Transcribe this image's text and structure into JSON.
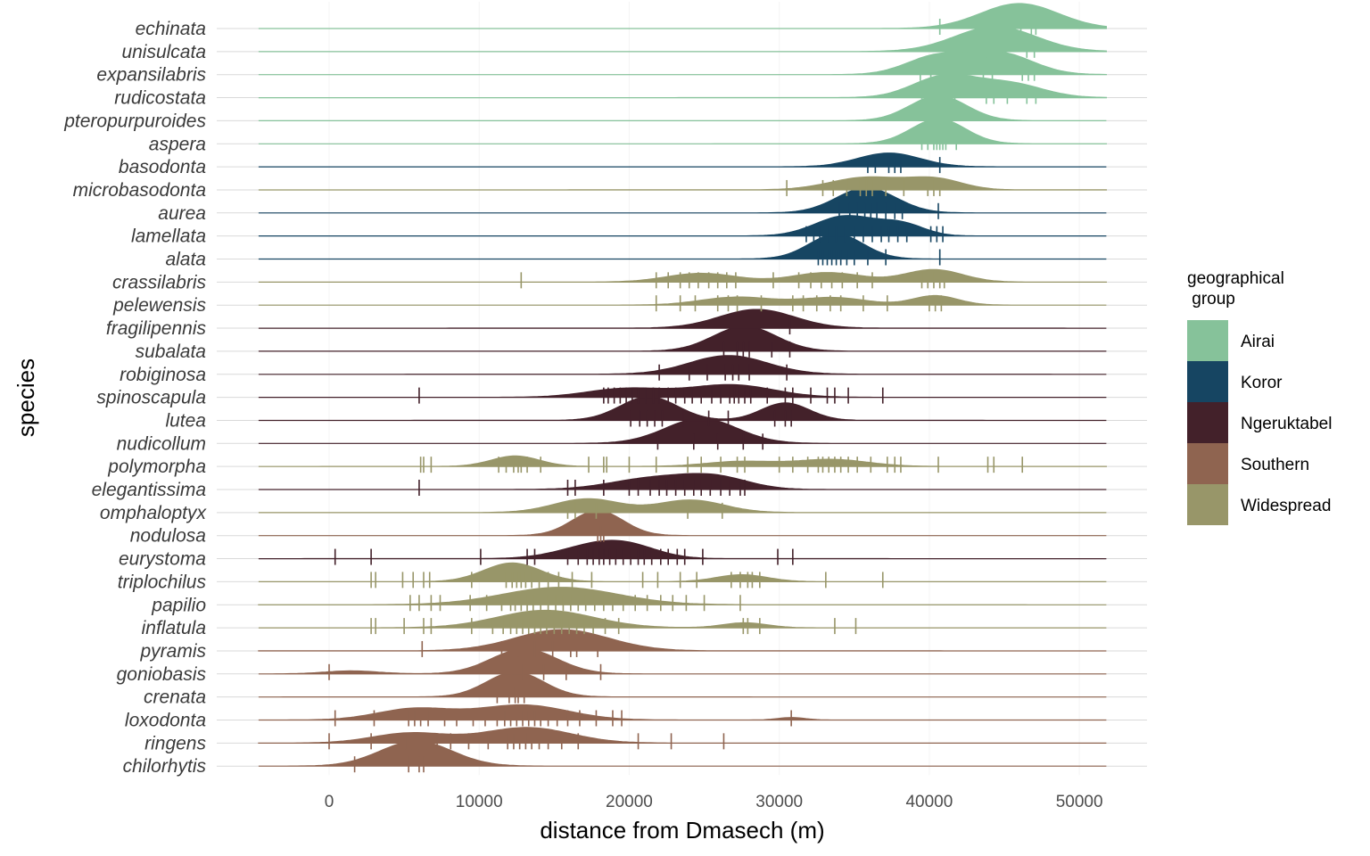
{
  "chart_data": {
    "type": "ridgeline",
    "xlabel": "distance from Dmasech (m)",
    "ylabel": "species",
    "xlim": [
      -4700,
      51800
    ],
    "xticks": [
      0,
      10000,
      20000,
      30000,
      40000,
      50000
    ],
    "xtick_labels": [
      "0",
      "10000",
      "20000",
      "30000",
      "40000",
      "50000"
    ],
    "legend": {
      "title": "geographical\n group",
      "position": "right",
      "groups": [
        {
          "name": "Airai",
          "color": "#86C29A"
        },
        {
          "name": "Koror",
          "color": "#164562"
        },
        {
          "name": "Ngeruktabel",
          "color": "#43212A"
        },
        {
          "name": "Southern",
          "color": "#8F6450"
        },
        {
          "name": "Widespread",
          "color": "#989669"
        }
      ]
    },
    "series": [
      {
        "name": "echinata",
        "group": "Airai",
        "peaks": [
          [
            46000,
            1.0,
            2600
          ]
        ],
        "points": [
          40700,
          43900,
          45300,
          46100,
          46800,
          47100
        ]
      },
      {
        "name": "unisulcata",
        "group": "Airai",
        "peaks": [
          [
            44400,
            1.0,
            2700
          ]
        ],
        "points": [
          41900,
          42300,
          42600,
          43800,
          44100,
          44800,
          46500,
          47000
        ]
      },
      {
        "name": "expansilabris",
        "group": "Airai",
        "peaks": [
          [
            40400,
            0.7,
            2000
          ],
          [
            44700,
            0.85,
            2200
          ]
        ],
        "points": [
          39400,
          40100,
          40900,
          41500,
          43600,
          44200,
          46200,
          46600,
          47000
        ]
      },
      {
        "name": "rudicostata",
        "group": "Airai",
        "peaks": [
          [
            41000,
            0.85,
            2100
          ],
          [
            45400,
            0.55,
            2200
          ]
        ],
        "points": [
          39500,
          40200,
          41100,
          41700,
          43800,
          44300,
          45200,
          46500,
          47100
        ]
      },
      {
        "name": "pteropurpuroides",
        "group": "Airai",
        "peaks": [
          [
            40600,
            1.0,
            1900
          ]
        ],
        "points": [
          39900,
          40300,
          40700,
          41100
        ]
      },
      {
        "name": "aspera",
        "group": "Airai",
        "peaks": [
          [
            40600,
            1.0,
            1800
          ]
        ],
        "points": [
          39500,
          39900,
          40300,
          40500,
          40700,
          40900,
          41100,
          41800
        ]
      },
      {
        "name": "basodonta",
        "group": "Koror",
        "peaks": [
          [
            37300,
            0.55,
            2100
          ]
        ],
        "points": [
          35900,
          36400,
          37300,
          37700,
          38100,
          40700
        ]
      },
      {
        "name": "microbasodonta",
        "group": "Widespread",
        "peaks": [
          [
            35800,
            0.5,
            2400
          ],
          [
            40400,
            0.42,
            1800
          ]
        ],
        "points": [
          30500,
          32900,
          33600,
          34500,
          35400,
          35800,
          36200,
          37100,
          38300,
          39900,
          40300,
          40700
        ]
      },
      {
        "name": "aurea",
        "group": "Koror",
        "peaks": [
          [
            35800,
            1.0,
            2000
          ]
        ],
        "points": [
          34000,
          34700,
          35200,
          35700,
          36100,
          36500,
          37100,
          37700,
          38200,
          40600
        ]
      },
      {
        "name": "lamellata",
        "group": "Koror",
        "peaks": [
          [
            34400,
            0.8,
            2000
          ],
          [
            38200,
            0.45,
            1500
          ]
        ],
        "points": [
          31800,
          32300,
          32700,
          33300,
          33800,
          34400,
          35000,
          35600,
          36200,
          36800,
          37300,
          37900,
          38500,
          40100,
          40500,
          40900
        ]
      },
      {
        "name": "alata",
        "group": "Koror",
        "peaks": [
          [
            33800,
            1.0,
            1800
          ]
        ],
        "points": [
          32600,
          32900,
          33200,
          33500,
          33800,
          34100,
          34500,
          35000,
          35900,
          37100,
          40700
        ]
      },
      {
        "name": "crassilabris",
        "group": "Widespread",
        "peaks": [
          [
            24800,
            0.35,
            2300
          ],
          [
            33200,
            0.38,
            2300
          ],
          [
            40300,
            0.5,
            1900
          ]
        ],
        "points": [
          12800,
          21800,
          22600,
          23400,
          24000,
          24600,
          25300,
          25900,
          26500,
          27100,
          29600,
          31300,
          32100,
          32800,
          33500,
          34200,
          35200,
          36200,
          39500,
          39900,
          40300,
          40700,
          41000
        ]
      },
      {
        "name": "pelewensis",
        "group": "Widespread",
        "peaks": [
          [
            27200,
            0.32,
            2400
          ],
          [
            33600,
            0.3,
            2200
          ],
          [
            40400,
            0.38,
            1500
          ]
        ],
        "points": [
          21800,
          23400,
          24400,
          25900,
          26600,
          27200,
          28800,
          30900,
          31600,
          32500,
          33400,
          34100,
          35600,
          37200,
          40000,
          40400,
          40800
        ]
      },
      {
        "name": "fragilipennis",
        "group": "Ngeruktabel",
        "peaks": [
          [
            28500,
            0.75,
            2500
          ]
        ],
        "points": [
          30700
        ]
      },
      {
        "name": "subalata",
        "group": "Ngeruktabel",
        "peaks": [
          [
            27700,
            1.0,
            2100
          ]
        ],
        "points": [
          26300,
          27200,
          27600,
          28000,
          29500,
          30700
        ]
      },
      {
        "name": "robiginosa",
        "group": "Ngeruktabel",
        "peaks": [
          [
            26600,
            0.75,
            2600
          ]
        ],
        "points": [
          22000,
          24000,
          25200,
          26400,
          26900,
          27300,
          28000,
          30500
        ]
      },
      {
        "name": "spinoscapula",
        "group": "Ngeruktabel",
        "peaks": [
          [
            19800,
            0.35,
            2600
          ],
          [
            26800,
            0.5,
            2800
          ]
        ],
        "points": [
          6000,
          18300,
          18600,
          19000,
          19400,
          19800,
          20200,
          20600,
          21100,
          21600,
          22000,
          22600,
          23100,
          23700,
          24200,
          24800,
          25500,
          26100,
          26700,
          27000,
          27300,
          27700,
          28100,
          29200,
          30400,
          30900,
          32100,
          33200,
          33700,
          34600,
          36900
        ]
      },
      {
        "name": "lutea",
        "group": "Ngeruktabel",
        "peaks": [
          [
            21300,
            0.95,
            1900
          ],
          [
            30400,
            0.7,
            1600
          ]
        ],
        "points": [
          20100,
          20700,
          21200,
          21700,
          22200,
          23600,
          25300,
          26600,
          29700,
          30400,
          30800
        ]
      },
      {
        "name": "nudicollum",
        "group": "Ngeruktabel",
        "peaks": [
          [
            24800,
            1.0,
            2400
          ]
        ],
        "points": [
          21900,
          24300,
          25900,
          27600,
          28900
        ]
      },
      {
        "name": "polymorpha",
        "group": "Widespread",
        "peaks": [
          [
            12400,
            0.42,
            1600
          ],
          [
            27400,
            0.2,
            2300
          ],
          [
            33500,
            0.28,
            2400
          ]
        ],
        "points": [
          6100,
          6300,
          6800,
          11300,
          11800,
          12300,
          12600,
          12800,
          13200,
          14100,
          17300,
          18300,
          18500,
          20000,
          21800,
          23900,
          24800,
          26100,
          27200,
          27700,
          30000,
          30900,
          31900,
          32600,
          32900,
          33300,
          33700,
          34100,
          34600,
          35200,
          36100,
          37200,
          37700,
          38100,
          40600,
          43900,
          44300,
          46200
        ]
      },
      {
        "name": "elegantissima",
        "group": "Ngeruktabel",
        "peaks": [
          [
            21600,
            0.45,
            2800
          ],
          [
            25800,
            0.45,
            2200
          ]
        ],
        "points": [
          6000,
          15900,
          16400,
          18300,
          20000,
          20600,
          21400,
          22000,
          22500,
          23100,
          23700,
          24300,
          24800,
          25400,
          26100,
          26700,
          27400,
          27700
        ]
      },
      {
        "name": "omphaloptyx",
        "group": "Widespread",
        "peaks": [
          [
            17200,
            0.55,
            2200
          ],
          [
            24100,
            0.5,
            2200
          ]
        ],
        "points": [
          15900,
          16400,
          17800,
          23900,
          26200
        ]
      },
      {
        "name": "nodulosa",
        "group": "Southern",
        "peaks": [
          [
            17900,
            1.0,
            1700
          ]
        ],
        "points": [
          17900,
          18100,
          18300
        ]
      },
      {
        "name": "eurystoma",
        "group": "Ngeruktabel",
        "peaks": [
          [
            17700,
            0.5,
            2400
          ],
          [
            20100,
            0.35,
            2000
          ]
        ],
        "points": [
          400,
          2800,
          10100,
          13200,
          13700,
          15900,
          16600,
          17200,
          17600,
          18000,
          18300,
          18700,
          19100,
          19600,
          20100,
          20600,
          21000,
          21500,
          22100,
          22600,
          23200,
          23700,
          24900,
          29900,
          30900
        ]
      },
      {
        "name": "triplochilus",
        "group": "Widespread",
        "peaks": [
          [
            12200,
            0.75,
            1900
          ],
          [
            27500,
            0.28,
            1700
          ]
        ],
        "points": [
          2800,
          3100,
          4900,
          5600,
          6300,
          6700,
          9500,
          11800,
          12200,
          12500,
          12800,
          13100,
          13500,
          14000,
          14600,
          15300,
          16200,
          17500,
          20900,
          21900,
          23400,
          24500,
          26800,
          27400,
          27900,
          28200,
          28700,
          33100,
          36900
        ]
      },
      {
        "name": "papilio",
        "group": "Widespread",
        "peaks": [
          [
            15400,
            0.7,
            3800
          ]
        ],
        "points": [
          5400,
          6000,
          6800,
          7400,
          9400,
          10500,
          11500,
          12100,
          12400,
          12800,
          13200,
          13600,
          14100,
          14600,
          15100,
          15600,
          16100,
          16600,
          17100,
          17700,
          18300,
          18900,
          19600,
          20400,
          21200,
          22100,
          22900,
          23800,
          25000,
          27400
        ]
      },
      {
        "name": "inflatula",
        "group": "Widespread",
        "peaks": [
          [
            14400,
            0.7,
            3200
          ],
          [
            27700,
            0.2,
            1500
          ]
        ],
        "points": [
          2800,
          3100,
          5000,
          6300,
          6800,
          9500,
          10900,
          11600,
          12100,
          12500,
          12900,
          13300,
          13700,
          14100,
          14500,
          15000,
          15500,
          16000,
          16500,
          17000,
          17600,
          18400,
          19300,
          27600,
          27900,
          28700,
          33700,
          35100
        ]
      },
      {
        "name": "pyramis",
        "group": "Southern",
        "peaks": [
          [
            15500,
            0.85,
            3100
          ]
        ],
        "points": [
          6200,
          11500,
          12600,
          13700,
          14900,
          16100,
          16500,
          17900
        ]
      },
      {
        "name": "goniobasis",
        "group": "Southern",
        "peaks": [
          [
            13000,
            1.0,
            2200
          ],
          [
            1500,
            0.12,
            1800
          ]
        ],
        "points": [
          0,
          12100,
          12900,
          14300,
          15800,
          18100
        ]
      },
      {
        "name": "crenata",
        "group": "Southern",
        "peaks": [
          [
            12400,
            1.0,
            1900
          ]
        ],
        "points": [
          11200,
          12000,
          12400,
          12600,
          13000
        ]
      },
      {
        "name": "loxodonta",
        "group": "Southern",
        "peaks": [
          [
            5700,
            0.45,
            2500
          ],
          [
            12900,
            0.6,
            3000
          ],
          [
            30800,
            0.1,
            900
          ]
        ],
        "points": [
          400,
          3000,
          5300,
          5700,
          6100,
          6600,
          7700,
          8500,
          9600,
          10400,
          11200,
          11700,
          12100,
          12500,
          12900,
          13300,
          13700,
          14100,
          14600,
          15200,
          15900,
          16700,
          17800,
          18900,
          19500,
          30800
        ]
      },
      {
        "name": "ringens",
        "group": "Southern",
        "peaks": [
          [
            5400,
            0.4,
            2500
          ],
          [
            13200,
            0.62,
            2900
          ]
        ],
        "points": [
          0,
          2800,
          5100,
          5500,
          6000,
          6500,
          7200,
          8100,
          9300,
          10600,
          11900,
          12300,
          12700,
          13100,
          13500,
          14000,
          14600,
          15500,
          16600,
          20600,
          22800,
          26300
        ]
      },
      {
        "name": "chilorhytis",
        "group": "Southern",
        "peaks": [
          [
            5800,
            1.0,
            2400
          ]
        ],
        "points": [
          1700,
          5300,
          6000,
          6300
        ]
      }
    ]
  }
}
